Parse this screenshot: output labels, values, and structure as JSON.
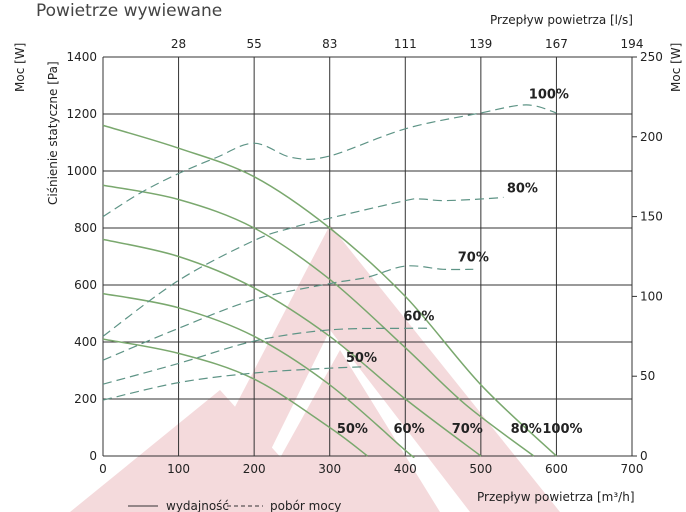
{
  "chart_data": {
    "type": "line",
    "title": "Powietrze wywiewane",
    "xlabel": "Przepływ powietrza [m³/h]",
    "x2label": "Przepływ powietrza [l/s]",
    "ylabel": "Ciśnienie statyczne [Pa]",
    "y2label": "Moc [W]",
    "xlim": [
      0,
      700
    ],
    "ylim": [
      0,
      1400
    ],
    "y2lim": [
      0,
      250
    ],
    "x_ticks": [
      "0",
      "100",
      "200",
      "300",
      "400",
      "500",
      "600",
      "700"
    ],
    "x2_ticks": [
      "28",
      "55",
      "83",
      "111",
      "139",
      "167",
      "194"
    ],
    "y_ticks": [
      "0",
      "200",
      "400",
      "600",
      "800",
      "1000",
      "1200",
      "1400"
    ],
    "y2_ticks": [
      "0",
      "50",
      "100",
      "150",
      "200",
      "250"
    ],
    "grid": true,
    "colors": {
      "efficiency": "#7aa86e",
      "power": "#5e9486",
      "watermark": "#f4dadc"
    },
    "efficiency_series": [
      {
        "name": "100%",
        "points": [
          [
            0,
            1160
          ],
          [
            100,
            1080
          ],
          [
            200,
            980
          ],
          [
            300,
            800
          ],
          [
            400,
            560
          ],
          [
            500,
            250
          ],
          [
            600,
            0
          ]
        ]
      },
      {
        "name": "80%",
        "points": [
          [
            0,
            950
          ],
          [
            100,
            900
          ],
          [
            200,
            800
          ],
          [
            300,
            620
          ],
          [
            400,
            380
          ],
          [
            480,
            180
          ],
          [
            570,
            0
          ]
        ]
      },
      {
        "name": "70%",
        "points": [
          [
            0,
            760
          ],
          [
            100,
            700
          ],
          [
            200,
            590
          ],
          [
            300,
            420
          ],
          [
            400,
            200
          ],
          [
            500,
            0
          ]
        ]
      },
      {
        "name": "60%",
        "points": [
          [
            0,
            570
          ],
          [
            100,
            520
          ],
          [
            200,
            420
          ],
          [
            300,
            250
          ],
          [
            400,
            20
          ],
          [
            410,
            0
          ]
        ]
      },
      {
        "name": "50%",
        "points": [
          [
            0,
            410
          ],
          [
            100,
            360
          ],
          [
            200,
            270
          ],
          [
            300,
            100
          ],
          [
            350,
            0
          ]
        ]
      }
    ],
    "power_series": [
      {
        "name": "100%",
        "points": [
          [
            0,
            150
          ],
          [
            50,
            165
          ],
          [
            100,
            177
          ],
          [
            150,
            187
          ],
          [
            200,
            196
          ],
          [
            250,
            187
          ],
          [
            300,
            188
          ],
          [
            400,
            205
          ],
          [
            500,
            215
          ],
          [
            560,
            220
          ],
          [
            600,
            215
          ]
        ]
      },
      {
        "name": "80%",
        "points": [
          [
            0,
            75
          ],
          [
            100,
            110
          ],
          [
            200,
            135
          ],
          [
            250,
            143
          ],
          [
            300,
            149
          ],
          [
            400,
            160
          ],
          [
            420,
            161
          ],
          [
            450,
            160
          ],
          [
            500,
            161
          ],
          [
            530,
            162
          ]
        ]
      },
      {
        "name": "70%",
        "points": [
          [
            0,
            60
          ],
          [
            100,
            80
          ],
          [
            200,
            98
          ],
          [
            300,
            108
          ],
          [
            350,
            112
          ],
          [
            400,
            119
          ],
          [
            450,
            117
          ],
          [
            490,
            117
          ]
        ]
      },
      {
        "name": "60%",
        "points": [
          [
            0,
            45
          ],
          [
            100,
            58
          ],
          [
            200,
            72
          ],
          [
            300,
            79
          ],
          [
            400,
            80
          ],
          [
            430,
            80
          ]
        ]
      },
      {
        "name": "50%",
        "points": [
          [
            0,
            35
          ],
          [
            100,
            46
          ],
          [
            200,
            52
          ],
          [
            300,
            55
          ],
          [
            350,
            56
          ]
        ]
      }
    ],
    "efficiency_labels": [
      {
        "text": "50%",
        "x": 330,
        "y": 80
      },
      {
        "text": "60%",
        "x": 405,
        "y": 80
      },
      {
        "text": "70%",
        "x": 482,
        "y": 80
      },
      {
        "text": "80%",
        "x": 560,
        "y": 80
      },
      {
        "text": "100%",
        "x": 608,
        "y": 80
      }
    ],
    "power_labels": [
      {
        "text": "100%",
        "x": 590,
        "y": 224
      },
      {
        "text": "80%",
        "x": 555,
        "y": 165
      },
      {
        "text": "70%",
        "x": 490,
        "y": 122
      },
      {
        "text": "60%",
        "x": 418,
        "y": 85
      },
      {
        "text": "50%",
        "x": 342,
        "y": 59
      }
    ],
    "legend": {
      "solid": "wydajność",
      "dashed": "pobór mocy",
      "placement": "bottom-left"
    }
  }
}
